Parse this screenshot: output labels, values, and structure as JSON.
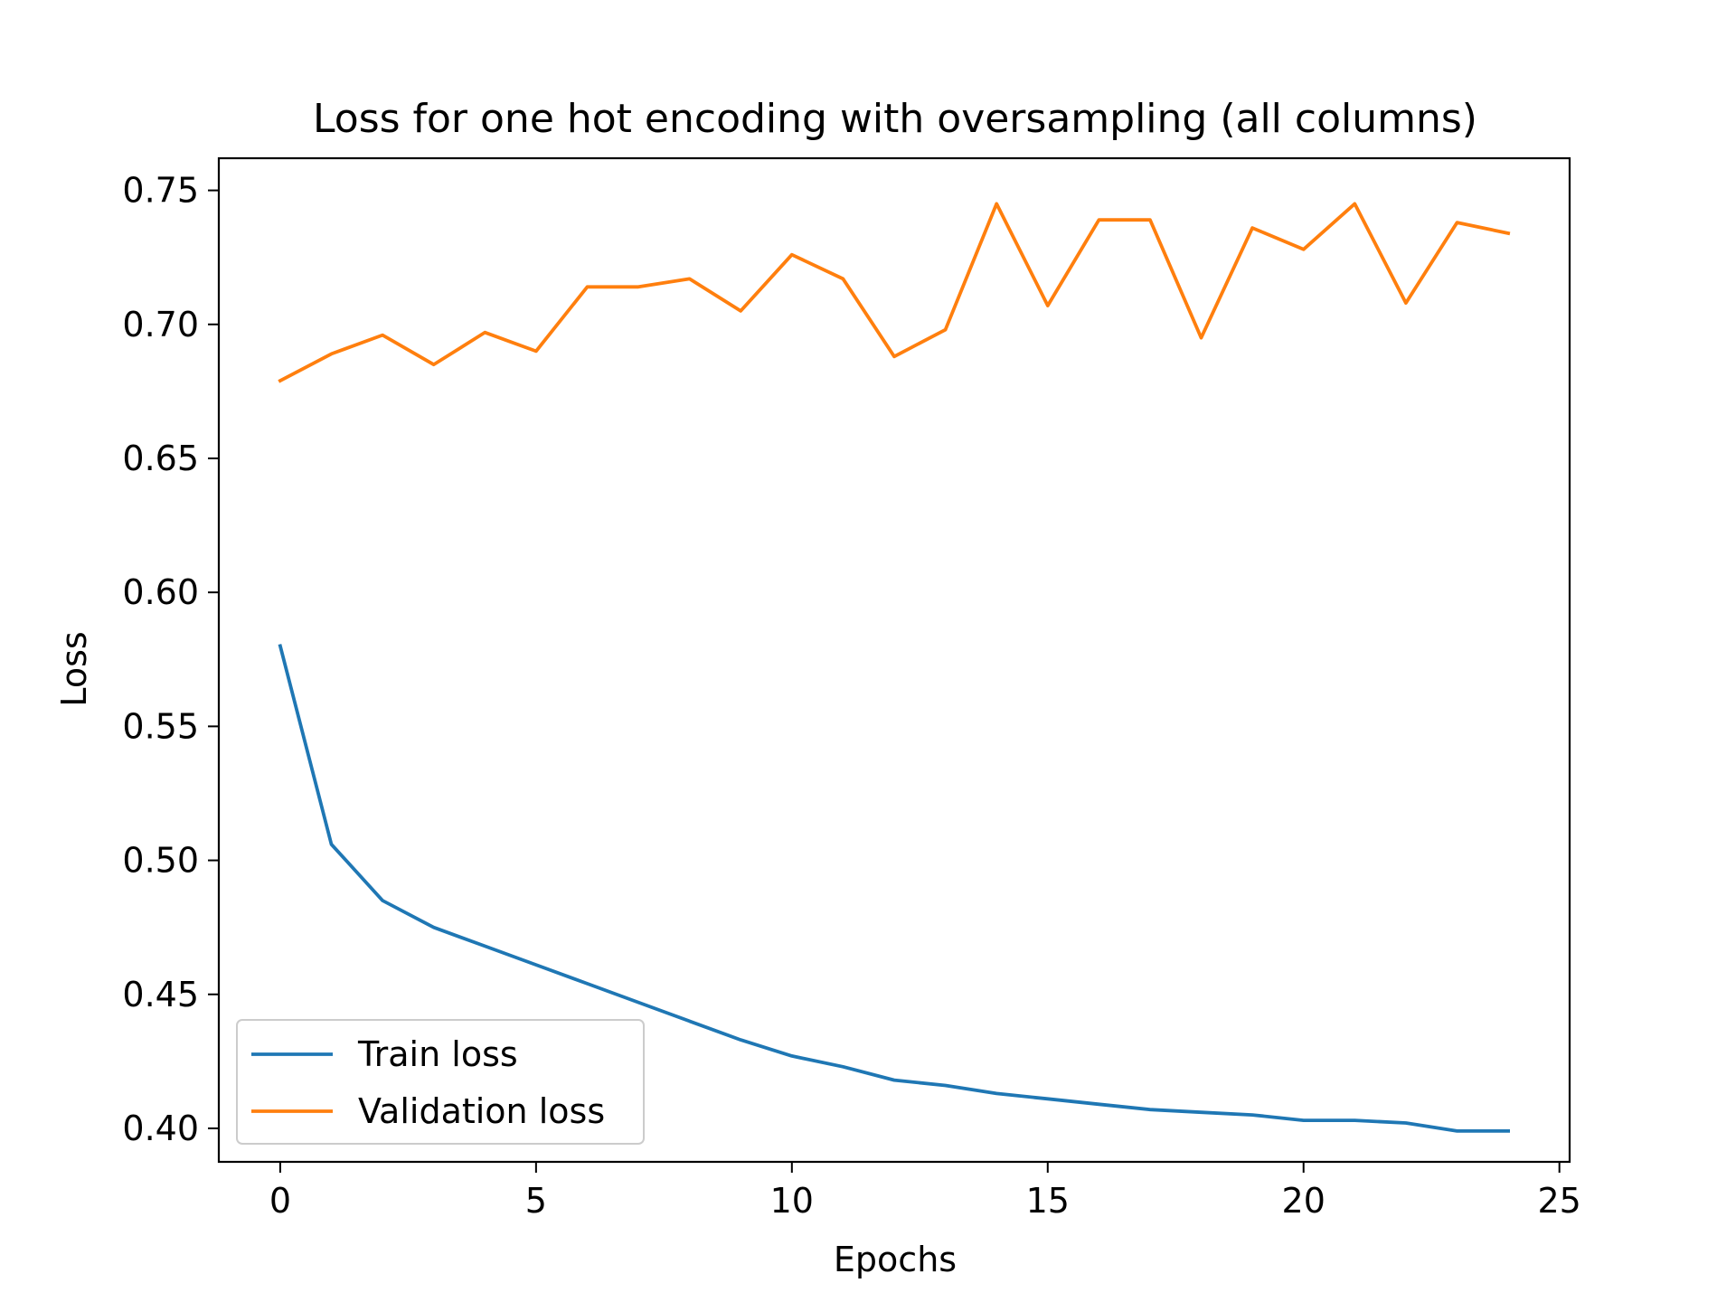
{
  "chart_data": {
    "type": "line",
    "title": "Loss for one hot encoding with oversampling (all columns)",
    "xlabel": "Epochs",
    "ylabel": "Loss",
    "xlim": [
      -1.2,
      25.2
    ],
    "ylim": [
      0.3875,
      0.762
    ],
    "xticks": [
      0,
      5,
      10,
      15,
      20,
      25
    ],
    "xtick_labels": [
      "0",
      "5",
      "10",
      "15",
      "20",
      "25"
    ],
    "yticks": [
      0.4,
      0.45,
      0.5,
      0.55,
      0.6,
      0.65,
      0.7,
      0.75
    ],
    "ytick_labels": [
      "0.40",
      "0.45",
      "0.50",
      "0.55",
      "0.60",
      "0.65",
      "0.70",
      "0.75"
    ],
    "grid": false,
    "legend_position": "lower-left",
    "x": [
      0,
      1,
      2,
      3,
      4,
      5,
      6,
      7,
      8,
      9,
      10,
      11,
      12,
      13,
      14,
      15,
      16,
      17,
      18,
      19,
      20,
      21,
      22,
      23,
      24
    ],
    "series": [
      {
        "name": "Train loss",
        "color": "#1f77b4",
        "values": [
          0.58,
          0.506,
          0.485,
          0.475,
          0.468,
          0.461,
          0.454,
          0.447,
          0.44,
          0.433,
          0.427,
          0.423,
          0.418,
          0.416,
          0.413,
          0.411,
          0.409,
          0.407,
          0.406,
          0.405,
          0.403,
          0.403,
          0.402,
          0.399,
          0.399
        ]
      },
      {
        "name": "Validation loss",
        "color": "#ff7f0e",
        "values": [
          0.679,
          0.689,
          0.696,
          0.685,
          0.697,
          0.69,
          0.714,
          0.714,
          0.717,
          0.705,
          0.726,
          0.717,
          0.688,
          0.698,
          0.745,
          0.707,
          0.739,
          0.739,
          0.695,
          0.736,
          0.728,
          0.745,
          0.708,
          0.738,
          0.734
        ]
      }
    ]
  }
}
